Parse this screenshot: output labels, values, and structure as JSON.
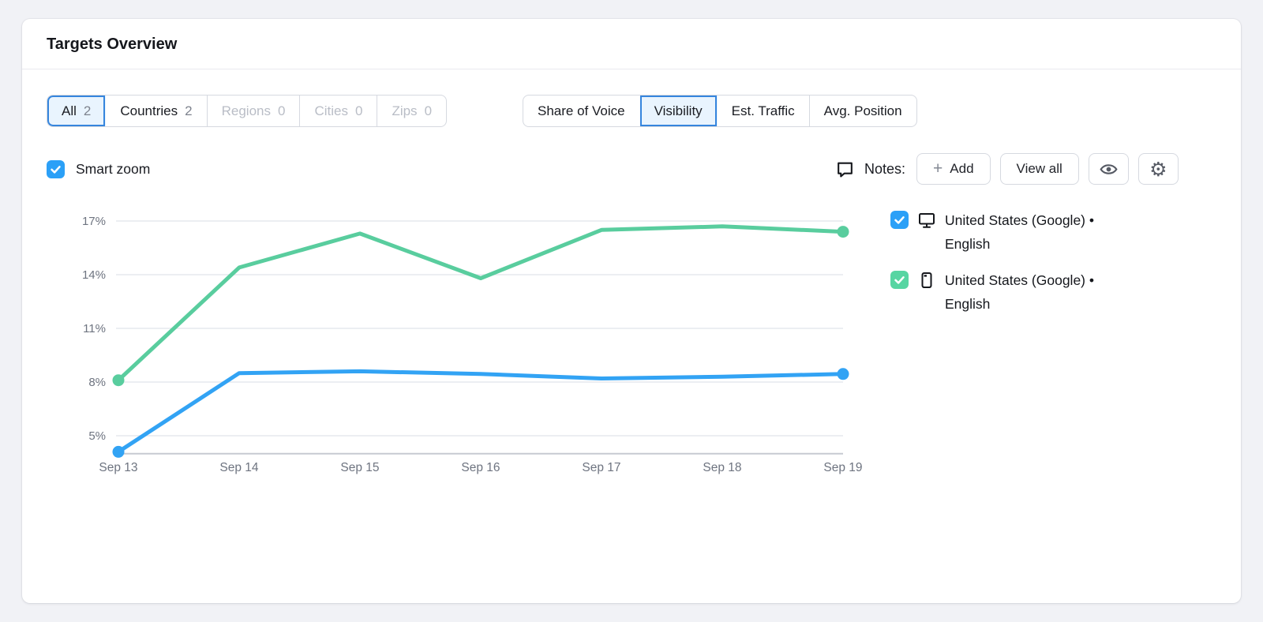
{
  "header": {
    "title": "Targets Overview"
  },
  "filters": {
    "scope_tabs": [
      {
        "label": "All",
        "count": "2",
        "state": "selected"
      },
      {
        "label": "Countries",
        "count": "2",
        "state": "enabled"
      },
      {
        "label": "Regions",
        "count": "0",
        "state": "disabled"
      },
      {
        "label": "Cities",
        "count": "0",
        "state": "disabled"
      },
      {
        "label": "Zips",
        "count": "0",
        "state": "disabled"
      }
    ],
    "metric_tabs": [
      {
        "label": "Share of Voice",
        "state": "normal"
      },
      {
        "label": "Visibility",
        "state": "selected"
      },
      {
        "label": "Est. Traffic",
        "state": "normal"
      },
      {
        "label": "Avg. Position",
        "state": "normal"
      }
    ]
  },
  "toolbar": {
    "smart_zoom_label": "Smart zoom",
    "smart_zoom_checked": true,
    "notes_icon": "speech-bubble-icon",
    "notes_label": "Notes:",
    "add_plus": "+",
    "add_label": "Add",
    "view_all_label": "View all",
    "icon_buttons": [
      "eye-icon",
      "gear-icon"
    ]
  },
  "legend": [
    {
      "device": "desktop",
      "device_icon": "desktop-icon",
      "checked": true,
      "checkbox_color": "#2ba0f7",
      "label": "United States (Google) • English"
    },
    {
      "device": "mobile",
      "device_icon": "mobile-icon",
      "checked": true,
      "checkbox_color": "#57d5a2",
      "label": "United States (Google) • English"
    }
  ],
  "colors": {
    "accent_blue": "#2ba0f7",
    "selected_tab_border": "#3585dd",
    "selected_tab_bg": "#e9f4fe",
    "series_desktop": "#32a3f4",
    "series_mobile": "#59cd9e",
    "gridline": "#e6e8ed",
    "axis_baseline": "#c7cad2",
    "axis_text": "#6e7480"
  },
  "chart_data": {
    "type": "line",
    "title": "",
    "x": [
      "Sep 13",
      "Sep 14",
      "Sep 15",
      "Sep 16",
      "Sep 17",
      "Sep 18",
      "Sep 19"
    ],
    "series": [
      {
        "name": "United States (Google) • English (desktop)",
        "color": "#32a3f4",
        "values": [
          4.1,
          8.5,
          8.6,
          8.45,
          8.2,
          8.3,
          8.45
        ]
      },
      {
        "name": "United States (Google) • English (mobile)",
        "color": "#59cd9e",
        "values": [
          8.1,
          14.4,
          16.3,
          13.8,
          16.5,
          16.7,
          16.4
        ]
      }
    ],
    "yticks": [
      "17%",
      "14%",
      "11%",
      "8%",
      "5%"
    ],
    "ytick_values": [
      17,
      14,
      11,
      8,
      5
    ],
    "ylim": [
      4,
      18
    ],
    "unit": "%",
    "grid": true,
    "legend_position": "right",
    "endpoint_dots": true
  }
}
